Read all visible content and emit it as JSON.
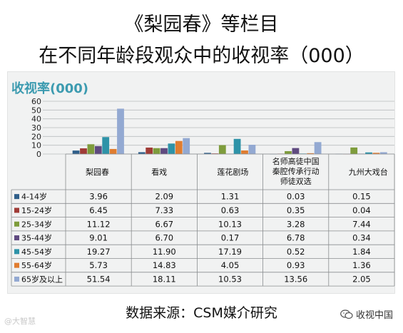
{
  "title_line1": "《梨园春》等栏目",
  "title_line2": "在不同年龄段观众中的收视率（000）",
  "source_text": "数据来源：CSM媒介研究",
  "watermark_left": "@大智慧",
  "watermark_right": "收视中国",
  "chart_data": {
    "type": "bar",
    "title": "《梨园春》等栏目在不同年龄段观众中的收视率（000）",
    "ylabel": "收视率(000)",
    "xlabel": "",
    "ylim": [
      0,
      60
    ],
    "yticks": [
      0,
      10,
      20,
      30,
      40,
      50,
      60
    ],
    "yticks_text": [
      "0",
      "10",
      "20",
      "30",
      "40",
      "50",
      "60"
    ],
    "grid": true,
    "legend": "table-left",
    "categories": [
      "梨园春",
      "看戏",
      "莲花剧场",
      "名师高徒中国秦腔传承行动师徒双选",
      "九州大戏台"
    ],
    "category_lines": [
      [
        "梨园春"
      ],
      [
        "看戏"
      ],
      [
        "莲花剧场"
      ],
      [
        "名师高徒中国",
        "秦腔传承行动",
        "师徒双选"
      ],
      [
        "九州大戏台"
      ]
    ],
    "series": [
      {
        "name": "4-14岁",
        "color": "#2f5f8a",
        "values": [
          3.96,
          2.09,
          1.31,
          0.03,
          0.15
        ],
        "labels": [
          "3.96",
          "2.09",
          "1.31",
          "0.03",
          "0.15"
        ]
      },
      {
        "name": "15-24岁",
        "color": "#a03b36",
        "values": [
          6.45,
          7.33,
          0.63,
          0.35,
          0.04
        ],
        "labels": [
          "6.45",
          "7.33",
          "0.63",
          "0.35",
          "0.04"
        ]
      },
      {
        "name": "25-34岁",
        "color": "#7e9c3c",
        "values": [
          11.12,
          6.67,
          10.13,
          3.28,
          7.44
        ],
        "labels": [
          "11.12",
          "6.67",
          "10.13",
          "3.28",
          "7.44"
        ]
      },
      {
        "name": "35-44岁",
        "color": "#5f4a80",
        "values": [
          9.01,
          6.7,
          0.17,
          6.78,
          0.34
        ],
        "labels": [
          "9.01",
          "6.70",
          "0.17",
          "6.78",
          "0.34"
        ]
      },
      {
        "name": "45-54岁",
        "color": "#2e93a8",
        "values": [
          19.27,
          11.9,
          17.19,
          0.52,
          1.84
        ],
        "labels": [
          "19.27",
          "11.90",
          "17.19",
          "0.52",
          "1.84"
        ]
      },
      {
        "name": "55-64岁",
        "color": "#e07d30",
        "values": [
          5.73,
          14.83,
          4.05,
          0.93,
          1.36
        ],
        "labels": [
          "5.73",
          "14.83",
          "4.05",
          "0.93",
          "1.36"
        ]
      },
      {
        "name": "65岁及以上",
        "color": "#93a9d2",
        "values": [
          51.54,
          18.11,
          10.53,
          13.56,
          2.05
        ],
        "labels": [
          "51.54",
          "18.11",
          "10.53",
          "13.56",
          "2.05"
        ]
      }
    ]
  }
}
